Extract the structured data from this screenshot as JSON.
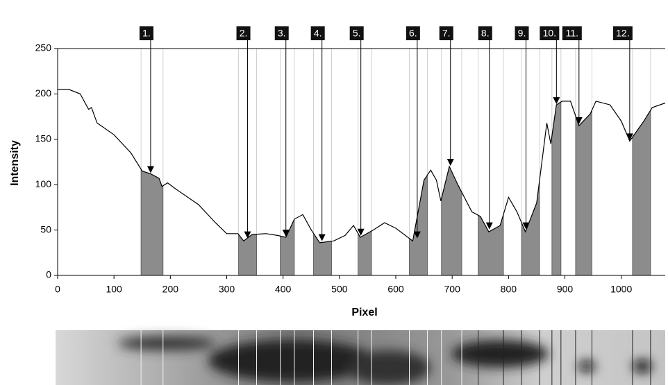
{
  "chart_data": {
    "type": "line",
    "x_label": "Pixel",
    "y_label": "Intensity",
    "xlim": [
      0,
      1078
    ],
    "ylim": [
      0,
      250
    ],
    "xticks": [
      0,
      100,
      200,
      300,
      400,
      500,
      600,
      700,
      800,
      900,
      1000
    ],
    "yticks": [
      0,
      50,
      100,
      150,
      200,
      250
    ],
    "color": "#000000",
    "band_color": "#8c8c8c",
    "x": [
      0,
      20,
      40,
      55,
      60,
      70,
      100,
      130,
      150,
      165,
      180,
      185,
      195,
      210,
      250,
      280,
      300,
      320,
      330,
      345,
      370,
      390,
      405,
      420,
      435,
      450,
      465,
      490,
      510,
      525,
      537,
      560,
      580,
      600,
      630,
      650,
      662,
      672,
      680,
      695,
      710,
      735,
      750,
      765,
      785,
      800,
      815,
      830,
      850,
      868,
      875,
      885,
      895,
      910,
      925,
      945,
      955,
      980,
      1000,
      1015,
      1040,
      1055,
      1078
    ],
    "values": [
      205,
      205,
      200,
      183,
      185,
      168,
      155,
      135,
      115,
      112,
      107,
      98,
      102,
      95,
      78,
      58,
      46,
      46,
      38,
      45,
      46,
      44,
      42,
      62,
      67,
      50,
      36,
      38,
      44,
      55,
      42,
      50,
      58,
      52,
      38,
      105,
      116,
      105,
      82,
      120,
      100,
      70,
      65,
      48,
      55,
      86,
      70,
      48,
      80,
      168,
      145,
      188,
      192,
      192,
      165,
      178,
      192,
      188,
      170,
      148,
      170,
      185,
      190
    ],
    "bands": [
      {
        "label": "1.",
        "start": 148,
        "end": 187,
        "peak_x": 165,
        "peak_y": 112
      },
      {
        "label": "2.",
        "start": 321,
        "end": 353,
        "peak_x": 337,
        "peak_y": 40
      },
      {
        "label": "3.",
        "start": 395,
        "end": 420,
        "peak_x": 405,
        "peak_y": 42
      },
      {
        "label": "4.",
        "start": 454,
        "end": 486,
        "peak_x": 469,
        "peak_y": 37
      },
      {
        "label": "5.",
        "start": 533,
        "end": 557,
        "peak_x": 538,
        "peak_y": 43
      },
      {
        "label": "6.",
        "start": 624,
        "end": 656,
        "peak_x": 638,
        "peak_y": 40
      },
      {
        "label": "7.",
        "start": 681,
        "end": 717,
        "peak_x": 697,
        "peak_y": 120
      },
      {
        "label": "8.",
        "start": 746,
        "end": 791,
        "peak_x": 766,
        "peak_y": 50
      },
      {
        "label": "9.",
        "start": 823,
        "end": 855,
        "peak_x": 831,
        "peak_y": 50
      },
      {
        "label": "10.",
        "start": 877,
        "end": 893,
        "peak_x": 885,
        "peak_y": 188
      },
      {
        "label": "11.",
        "start": 919,
        "end": 948,
        "peak_x": 925,
        "peak_y": 166
      },
      {
        "label": "12.",
        "start": 1020,
        "end": 1052,
        "peak_x": 1015,
        "peak_y": 148
      }
    ]
  }
}
